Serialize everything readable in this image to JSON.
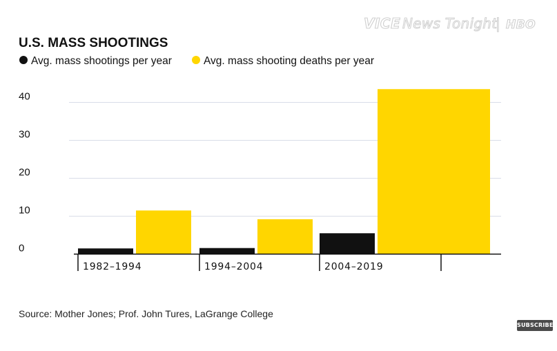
{
  "watermark": {
    "brand": "VICE",
    "show": "News Tonight",
    "separator": "|",
    "network": "HBO"
  },
  "subscribe": {
    "label": "SUBSCRIBE"
  },
  "colors": {
    "series_shootings": "#111111",
    "series_deaths": "#ffd600",
    "grid": "#d9dde8",
    "axis": "#111111"
  },
  "chart_data": {
    "type": "bar",
    "title": "U.S. MASS SHOOTINGS",
    "categories": [
      "1982–1994",
      "1994–2004",
      "2004–2019"
    ],
    "series": [
      {
        "name": "Avg. mass shootings per year",
        "values": [
          1.5,
          1.6,
          5.5
        ],
        "color": "#111111"
      },
      {
        "name": "Avg. mass shooting deaths per year",
        "values": [
          11.5,
          9.2,
          43.5
        ],
        "color": "#ffd600"
      }
    ],
    "yticks": [
      0,
      10,
      20,
      30,
      40
    ],
    "ylim": [
      0,
      45
    ],
    "xlabel": "",
    "ylabel": "",
    "grid": true,
    "legend_position": "top-left",
    "source": "Source: Mother Jones; Prof. John Tures, LaGrange College"
  }
}
